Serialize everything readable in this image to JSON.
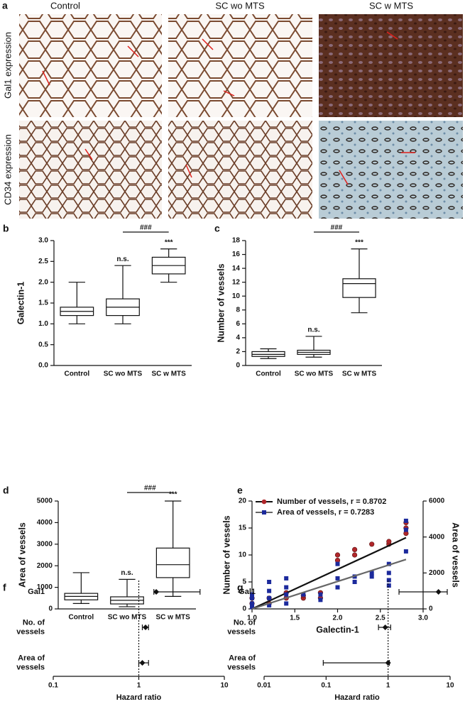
{
  "images": {
    "panel": "a",
    "columns": [
      "Control",
      "SC wo MTS",
      "SC w MTS"
    ],
    "rows": [
      "Gal1 expression",
      "CD34 expression"
    ]
  },
  "chart_data": [
    {
      "type": "box",
      "panel": "b",
      "ylabel": "Galectin-1",
      "categories": [
        "Control",
        "SC wo MTS",
        "SC w MTS"
      ],
      "boxes": [
        {
          "min": 1.0,
          "q1": 1.2,
          "median": 1.3,
          "q3": 1.4,
          "max": 2.0
        },
        {
          "min": 1.0,
          "q1": 1.2,
          "median": 1.4,
          "q3": 1.6,
          "max": 2.4
        },
        {
          "min": 2.0,
          "q1": 2.2,
          "median": 2.4,
          "q3": 2.6,
          "max": 2.8
        }
      ],
      "significance": [
        null,
        "n.s.",
        "***"
      ],
      "comparison": "###",
      "ylim": [
        0,
        3
      ],
      "yticks": [
        {
          "value": 0,
          "label": "0.0"
        },
        0.5,
        {
          "value": 1,
          "label": "1.0"
        },
        1.5,
        {
          "value": 2,
          "label": "2.0"
        },
        2.5,
        {
          "value": 3,
          "label": "3.0"
        }
      ]
    },
    {
      "type": "box",
      "panel": "c",
      "ylabel": "Number of vessels",
      "categories": [
        "Control",
        "SC wo MTS",
        "SC w MTS"
      ],
      "boxes": [
        {
          "min": 1.0,
          "q1": 1.3,
          "median": 1.6,
          "q3": 2.0,
          "max": 2.4
        },
        {
          "min": 1.2,
          "q1": 1.6,
          "median": 1.9,
          "q3": 2.2,
          "max": 4.2
        },
        {
          "min": 7.6,
          "q1": 9.8,
          "median": 11.8,
          "q3": 12.5,
          "max": 16.8
        }
      ],
      "significance": [
        null,
        "n.s.",
        "***"
      ],
      "comparison": "###",
      "ylim": [
        0,
        18
      ],
      "yticks": [
        0,
        2,
        4,
        6,
        8,
        10,
        12,
        14,
        16,
        18
      ]
    },
    {
      "type": "box",
      "panel": "d",
      "ylabel": "Area of vessels",
      "categories": [
        "Control",
        "SC wo MTS",
        "SC w MTS"
      ],
      "boxes": [
        {
          "min": 250,
          "q1": 420,
          "median": 580,
          "q3": 720,
          "max": 1680
        },
        {
          "min": 100,
          "q1": 230,
          "median": 400,
          "q3": 560,
          "max": 1370
        },
        {
          "min": 580,
          "q1": 1450,
          "median": 2050,
          "q3": 2820,
          "max": 5000
        }
      ],
      "significance": [
        null,
        "n.s.",
        "***"
      ],
      "comparison": "###",
      "ylim": [
        0,
        5000
      ],
      "yticks": [
        0,
        1000,
        2000,
        3000,
        4000,
        5000
      ]
    },
    {
      "type": "scatter",
      "panel": "e",
      "xlabel": "Galectin-1",
      "ylabel": "Number of vessels",
      "y2label": "Area of vessels",
      "xlim": [
        1.0,
        3.0
      ],
      "xticks": [
        {
          "value": 1,
          "label": "1.0"
        },
        1.5,
        {
          "value": 2,
          "label": "2.0"
        },
        2.5,
        {
          "value": 3,
          "label": "3.0"
        }
      ],
      "ylim": [
        0,
        20
      ],
      "yticks": [
        0,
        5,
        10,
        15,
        20
      ],
      "y2lim": [
        0,
        6000
      ],
      "y2ticks": [
        0,
        2000,
        4000,
        6000
      ],
      "legend": "upper left",
      "series": [
        {
          "name": "Number of vessels, r = 0.8702",
          "color": "#b0262a",
          "line_color": "#111111",
          "marker": "circle",
          "x": [
            1.0,
            1.0,
            1.2,
            1.2,
            1.4,
            1.4,
            1.6,
            1.6,
            1.8,
            1.8,
            2.0,
            2.0,
            2.2,
            2.2,
            2.4,
            2.6,
            2.6,
            2.8,
            2.8,
            2.8
          ],
          "values": [
            1,
            2,
            1,
            2,
            2,
            3,
            2,
            2.5,
            2,
            3,
            9,
            10,
            10,
            11,
            12,
            12,
            12.5,
            14,
            15,
            16
          ],
          "fit": {
            "x": [
              1.0,
              2.8
            ],
            "values": [
              0,
              13.2
            ]
          }
        },
        {
          "name": "Area of vessels, r = 0.7283",
          "color": "#1c2a9c",
          "line_color": "#666666",
          "marker": "square",
          "axis": "y2",
          "x": [
            1.0,
            1.0,
            1.0,
            1.0,
            1.2,
            1.2,
            1.2,
            1.2,
            1.4,
            1.4,
            1.4,
            1.4,
            1.6,
            1.8,
            1.8,
            2.0,
            2.0,
            2.0,
            2.2,
            2.2,
            2.4,
            2.4,
            2.6,
            2.6,
            2.6,
            2.6,
            2.8,
            2.8,
            2.8
          ],
          "values": [
            100,
            300,
            600,
            800,
            200,
            600,
            1000,
            1500,
            300,
            800,
            1200,
            1700,
            800,
            500,
            800,
            1200,
            1700,
            2500,
            1500,
            1800,
            1800,
            2000,
            1300,
            1600,
            2000,
            2500,
            3200,
            4400,
            4900
          ],
          "fit": {
            "x": [
              1.0,
              2.8
            ],
            "values": [
              0,
              2750
            ]
          }
        }
      ]
    },
    {
      "type": "forest",
      "panel": "f",
      "xlabel": "Hazard ratio",
      "log": true,
      "categories": [
        [
          "Gal1"
        ],
        [
          "No. of",
          "vessels"
        ],
        [
          "Area of",
          "vessels"
        ]
      ],
      "values": [
        1.6,
        1.2,
        1.1
      ],
      "lower": [
        1.5,
        1.1,
        1.0
      ],
      "upper": [
        5.2,
        1.3,
        1.3
      ],
      "reference": 1,
      "xlim": [
        0.1,
        10
      ],
      "xticks": [
        0.1,
        1,
        10
      ]
    },
    {
      "type": "forest",
      "panel": "g",
      "xlabel": "Hazard ratio",
      "log": true,
      "categories": [
        [
          "Gal1"
        ],
        [
          "No. of",
          "vessels"
        ],
        [
          "Area of",
          "vessels"
        ]
      ],
      "values": [
        6.5,
        0.9,
        1.0
      ],
      "lower": [
        1.5,
        0.7,
        0.09
      ],
      "upper": [
        9,
        1.1,
        1.05
      ],
      "reference": 1,
      "xlim": [
        0.01,
        10
      ],
      "xticks": [
        0.01,
        0.1,
        1,
        10
      ]
    }
  ]
}
